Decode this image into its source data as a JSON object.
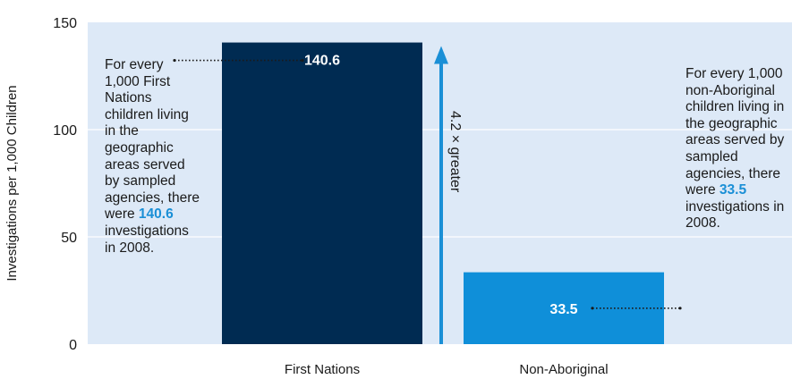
{
  "chart_data": {
    "type": "bar",
    "categories": [
      "First Nations",
      "Non-Aboriginal"
    ],
    "values": [
      140.6,
      33.5
    ],
    "data_labels": [
      "140.6",
      "33.5"
    ],
    "colors": [
      "#002b52",
      "#0f8fd9"
    ],
    "background_color": "#dde9f7",
    "arrow_color": "#1a8fd6",
    "ylabel": "Investigations per 1,000 Children",
    "xlabel": "",
    "ylim": [
      0,
      150
    ],
    "yticks": [
      0,
      50,
      100,
      150
    ],
    "grid": "horizontal lines at 50 and 100",
    "legend": "none",
    "ratio_label": "4.2 × greater"
  },
  "annotations": {
    "left": {
      "text_before": "For every 1,000 First Nations children living in the geographic areas served by sampled agencies, there were ",
      "highlight": "140.6",
      "text_after": " investigations in 2008."
    },
    "right": {
      "text_before": "For every 1,000 non-Aboriginal children living in the geographic areas served by sampled agencies, there were ",
      "highlight": "33.5",
      "text_after": " investigations in 2008."
    }
  }
}
